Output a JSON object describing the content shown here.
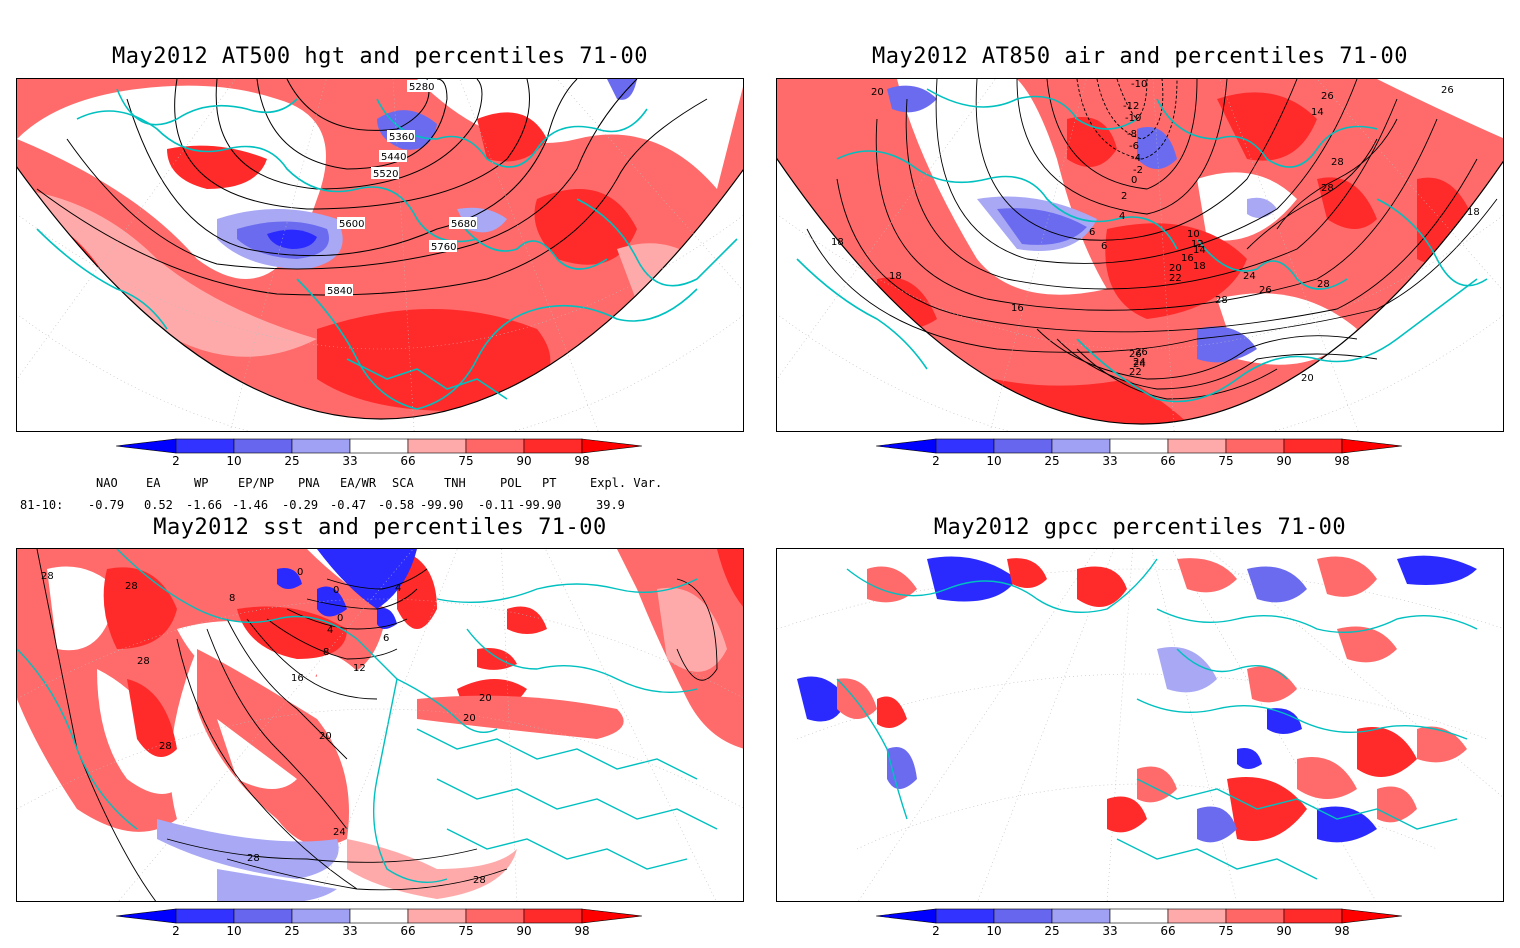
{
  "panels": [
    {
      "title": "May2012 AT500 hgt and percentiles 71-00",
      "contour_labels": [
        "5280",
        "5360",
        "5440",
        "5520",
        "5600",
        "5680",
        "5760",
        "5840"
      ]
    },
    {
      "title": "May2012 AT850 air and percentiles 71-00",
      "contour_labels": [
        "-10",
        "-12",
        "-10",
        "-8",
        "-6",
        "-4",
        "-2",
        "0",
        "2",
        "4",
        "6",
        "6",
        "10",
        "12",
        "14",
        "16",
        "18",
        "20",
        "22",
        "24",
        "26",
        "28",
        "20",
        "24",
        "26",
        "28",
        "14",
        "26",
        "26",
        "28",
        "28",
        "18",
        "18",
        "18",
        "16",
        "20",
        "22",
        "24",
        "26"
      ]
    },
    {
      "title": "May2012 sst and percentiles 71-00",
      "contour_labels": [
        "28",
        "28",
        "28",
        "28",
        "0",
        "8",
        "0",
        "4",
        "6",
        "8",
        "12",
        "16",
        "20",
        "24",
        "28",
        "28",
        "20",
        "20",
        "0",
        "4"
      ]
    },
    {
      "title": "May2012 gpcc percentiles 71-00",
      "contour_labels": []
    }
  ],
  "colorbar": {
    "ticks": [
      "2",
      "10",
      "25",
      "33",
      "66",
      "75",
      "90",
      "98"
    ],
    "colors": [
      "#0000ff",
      "#3333ff",
      "#6666ee",
      "#a0a0f5",
      "#ffffff",
      "#ffaaaa",
      "#ff6666",
      "#ff2a2a",
      "#ff0000"
    ]
  },
  "indices": {
    "headers": [
      "NAO",
      "EA",
      "WP",
      "EP/NP",
      "PNA",
      "EA/WR",
      "SCA",
      "TNH",
      "POL",
      "PT",
      "Expl. Var."
    ],
    "row_label": "81-10:",
    "values": [
      "-0.79",
      "0.52",
      "-1.66",
      "-1.46",
      "-0.29",
      "-0.47",
      "-0.58",
      "-99.90",
      "-0.11",
      "-99.90",
      "39.9"
    ]
  },
  "colors": {
    "coast": "#00c0c0",
    "strong_red": "#ff2020",
    "mid_red": "#ff6a6a",
    "light_red": "#ffaaaa",
    "strong_blue": "#2a2aff",
    "mid_blue": "#6b6bf0",
    "light_blue": "#a8a8f5"
  }
}
